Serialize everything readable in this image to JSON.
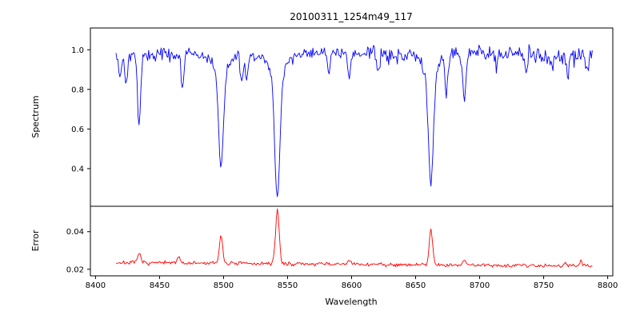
{
  "figure": {
    "title": "20100311_1254m49_117",
    "xlabel": "Wavelength",
    "ylabel_top": "Spectrum",
    "ylabel_bottom": "Error"
  },
  "chart_data": {
    "type": "line",
    "title": "20100311_1254m49_117",
    "xlabel": "Wavelength",
    "xlim": [
      8396,
      8804
    ],
    "xticks": [
      8400,
      8450,
      8500,
      8550,
      8600,
      8650,
      8700,
      8750,
      8800
    ],
    "x_start": 8416,
    "x_end": 8788,
    "x_step": 0.75,
    "grid": false,
    "legend": "none",
    "panels": [
      {
        "name": "spectrum",
        "ylabel": "Spectrum",
        "color": "#0000ff",
        "ylim": [
          0.21,
          1.11
        ],
        "yticks": [
          0.4,
          0.6,
          0.8,
          1.0
        ],
        "decimals": 1
      },
      {
        "name": "error",
        "ylabel": "Error",
        "color": "#ff0000",
        "ylim": [
          0.0165,
          0.0535
        ],
        "yticks": [
          0.02,
          0.04
        ],
        "decimals": 2
      }
    ],
    "spectrum_model": {
      "continuum": 0.975,
      "noise_sigma": 0.013,
      "seed": 42,
      "wiggle": {
        "amp1": 0.006,
        "freq1": 0.05,
        "amp2": 0.005,
        "freq2": 0.013
      },
      "extra_noise_regions": [
        {
          "from": 8612,
          "to": 8790,
          "sigma": 0.02
        },
        {
          "from": 8416,
          "to": 8475,
          "sigma": 0.016
        }
      ],
      "lines": [
        {
          "center": 8419,
          "depth": 0.1,
          "sigma": 1.0
        },
        {
          "center": 8424,
          "depth": 0.14,
          "sigma": 1.0
        },
        {
          "center": 8434,
          "depth": 0.36,
          "sigma": 1.2
        },
        {
          "center": 8468,
          "depth": 0.16,
          "sigma": 1.1
        },
        {
          "center": 8498,
          "depth": 0.47,
          "sigma": 1.8,
          "wing_depth": 0.09,
          "wing_sigma": 5.0
        },
        {
          "center": 8514,
          "depth": 0.14,
          "sigma": 1.0
        },
        {
          "center": 8518,
          "depth": 0.13,
          "sigma": 1.0
        },
        {
          "center": 8542,
          "depth": 0.6,
          "sigma": 2.0,
          "wing_depth": 0.11,
          "wing_sigma": 6.0
        },
        {
          "center": 8582,
          "depth": 0.09,
          "sigma": 1.0
        },
        {
          "center": 8598,
          "depth": 0.13,
          "sigma": 1.1
        },
        {
          "center": 8621,
          "depth": 0.09,
          "sigma": 1.0
        },
        {
          "center": 8662,
          "depth": 0.55,
          "sigma": 1.9,
          "wing_depth": 0.1,
          "wing_sigma": 5.5
        },
        {
          "center": 8674,
          "depth": 0.2,
          "sigma": 1.1
        },
        {
          "center": 8688,
          "depth": 0.24,
          "sigma": 1.2
        },
        {
          "center": 8713,
          "depth": 0.08,
          "sigma": 1.0
        },
        {
          "center": 8736,
          "depth": 0.09,
          "sigma": 1.0
        },
        {
          "center": 8757,
          "depth": 0.08,
          "sigma": 1.0
        },
        {
          "center": 8769,
          "depth": 0.1,
          "sigma": 1.0
        },
        {
          "center": 8784,
          "depth": 0.08,
          "sigma": 1.0
        }
      ]
    },
    "error_model": {
      "baseline_start": 0.0235,
      "baseline_end": 0.0218,
      "noise_sigma": 0.0005,
      "seed": 7,
      "spikes": [
        {
          "center": 8434,
          "height": 0.005,
          "sigma": 1.2
        },
        {
          "center": 8465,
          "height": 0.0035,
          "sigma": 1.2
        },
        {
          "center": 8498,
          "height": 0.0145,
          "sigma": 1.3
        },
        {
          "center": 8542,
          "height": 0.029,
          "sigma": 1.4
        },
        {
          "center": 8598,
          "height": 0.002,
          "sigma": 1.2
        },
        {
          "center": 8662,
          "height": 0.019,
          "sigma": 1.3
        },
        {
          "center": 8688,
          "height": 0.0025,
          "sigma": 1.2
        },
        {
          "center": 8767,
          "height": 0.002,
          "sigma": 1.0
        },
        {
          "center": 8779,
          "height": 0.0025,
          "sigma": 1.0
        }
      ]
    }
  }
}
